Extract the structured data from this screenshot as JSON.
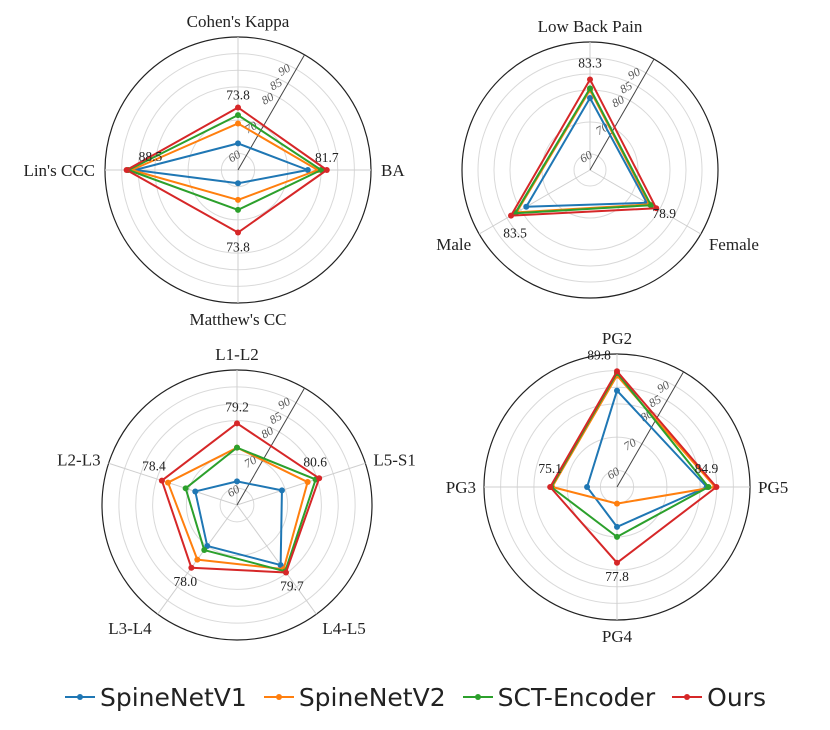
{
  "colors": {
    "SpineNetV1": "#1f77b4",
    "SpineNetV2": "#ff7f0e",
    "SCT-Encoder": "#2ca02c",
    "Ours": "#d62728"
  },
  "legend": [
    "SpineNetV1",
    "SpineNetV2",
    "SCT-Encoder",
    "Ours"
  ],
  "chart_data": [
    {
      "type": "radar",
      "axes": [
        "Cohen's Kappa",
        "BA",
        "Matthew's CC",
        "Lin's CCC"
      ],
      "radial_range": [
        55,
        95
      ],
      "radial_ticks": [
        60,
        70,
        80,
        85,
        90
      ],
      "series": [
        {
          "name": "SpineNetV1",
          "values": [
            63.0,
            76.0,
            59.0,
            86.0
          ]
        },
        {
          "name": "SpineNetV2",
          "values": [
            69.0,
            79.0,
            64.0,
            87.0
          ]
        },
        {
          "name": "SCT-Encoder",
          "values": [
            71.5,
            80.0,
            67.0,
            88.0
          ]
        },
        {
          "name": "Ours",
          "values": [
            73.8,
            81.7,
            73.8,
            88.5
          ]
        }
      ],
      "annotations": [
        "73.8",
        "81.7",
        "73.8",
        "88.5"
      ]
    },
    {
      "type": "radar",
      "axes": [
        "Low Back Pain",
        "Female",
        "Male"
      ],
      "radial_range": [
        55,
        95
      ],
      "radial_ticks": [
        60,
        70,
        80,
        85,
        90
      ],
      "series": [
        {
          "name": "SpineNetV1",
          "values": [
            77.5,
            75.5,
            78.0
          ]
        },
        {
          "name": "SpineNetV2",
          "values": [
            80.0,
            76.5,
            81.5
          ]
        },
        {
          "name": "SCT-Encoder",
          "values": [
            80.5,
            77.0,
            82.0
          ]
        },
        {
          "name": "Ours",
          "values": [
            83.3,
            78.9,
            83.5
          ]
        }
      ],
      "annotations": [
        "83.3",
        "78.9",
        "83.5"
      ]
    },
    {
      "type": "radar",
      "axes": [
        "L1-L2",
        "L5-S1",
        "L4-L5",
        "L3-L4",
        "L2-L3"
      ],
      "radial_range": [
        55,
        95
      ],
      "radial_ticks": [
        60,
        70,
        80,
        85,
        90
      ],
      "series": [
        {
          "name": "SpineNetV1",
          "values": [
            62.0,
            69.0,
            77.0,
            70.0,
            68.0
          ]
        },
        {
          "name": "SpineNetV2",
          "values": [
            72.0,
            77.0,
            78.5,
            75.0,
            76.5
          ]
        },
        {
          "name": "SCT-Encoder",
          "values": [
            72.0,
            79.5,
            79.3,
            71.5,
            71.0
          ]
        },
        {
          "name": "Ours",
          "values": [
            79.2,
            80.6,
            79.7,
            78.0,
            78.4
          ]
        }
      ],
      "annotations": [
        "79.2",
        "80.6",
        "79.7",
        "78.0",
        "78.4"
      ]
    },
    {
      "type": "radar",
      "axes": [
        "PG2",
        "PG5",
        "PG4",
        "PG3"
      ],
      "radial_range": [
        55,
        95
      ],
      "radial_ticks": [
        60,
        70,
        80,
        85,
        90
      ],
      "series": [
        {
          "name": "SpineNetV1",
          "values": [
            84.0,
            82.0,
            67.0,
            64.0
          ]
        },
        {
          "name": "SpineNetV2",
          "values": [
            88.5,
            84.5,
            60.0,
            74.5
          ]
        },
        {
          "name": "SCT-Encoder",
          "values": [
            89.3,
            82.5,
            70.0,
            74.8
          ]
        },
        {
          "name": "Ours",
          "values": [
            89.8,
            84.9,
            77.8,
            75.1
          ]
        }
      ],
      "annotations": [
        "89.8",
        "84.9",
        "77.8",
        "75.1"
      ]
    }
  ]
}
